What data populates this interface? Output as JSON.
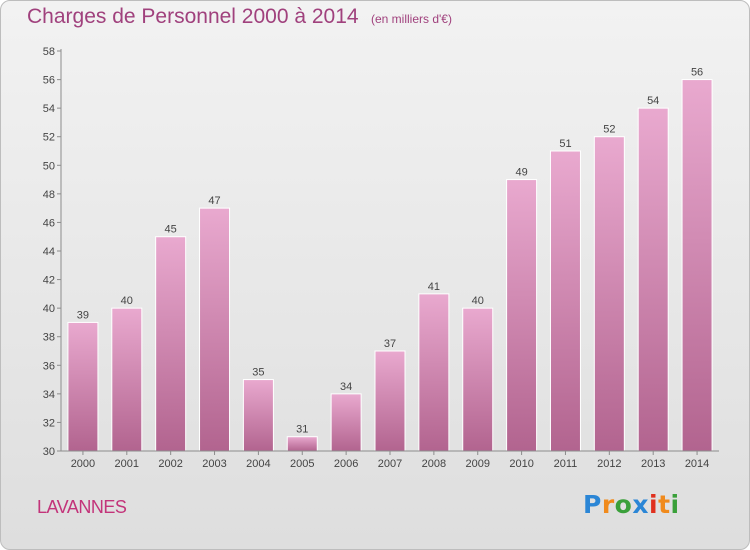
{
  "title": "Charges de Personnel 2000 à 2014",
  "subtitle": "(en milliers d'€)",
  "commune": "LAVANNES",
  "logo": {
    "text": "Proxiti",
    "colors": [
      "#2b86d6",
      "#f08a1c",
      "#3aa03a",
      "#2b86d6",
      "#e0301e",
      "#f08a1c",
      "#3aa03a"
    ]
  },
  "colors": {
    "bar_top": "#e9a9cf",
    "bar_bottom": "#b2648f",
    "title": "#a0417d",
    "commune": "#c3347a"
  },
  "chart_data": {
    "type": "bar",
    "categories": [
      "2000",
      "2001",
      "2002",
      "2003",
      "2004",
      "2005",
      "2006",
      "2007",
      "2008",
      "2009",
      "2010",
      "2011",
      "2012",
      "2013",
      "2014"
    ],
    "values": [
      39,
      40,
      45,
      47,
      35,
      31,
      34,
      37,
      41,
      40,
      49,
      51,
      52,
      54,
      56
    ],
    "ylim": [
      30,
      58
    ],
    "yticks": [
      30,
      32,
      34,
      36,
      38,
      40,
      42,
      44,
      46,
      48,
      50,
      52,
      54,
      56,
      58
    ],
    "grid": false,
    "data_labels": true
  }
}
